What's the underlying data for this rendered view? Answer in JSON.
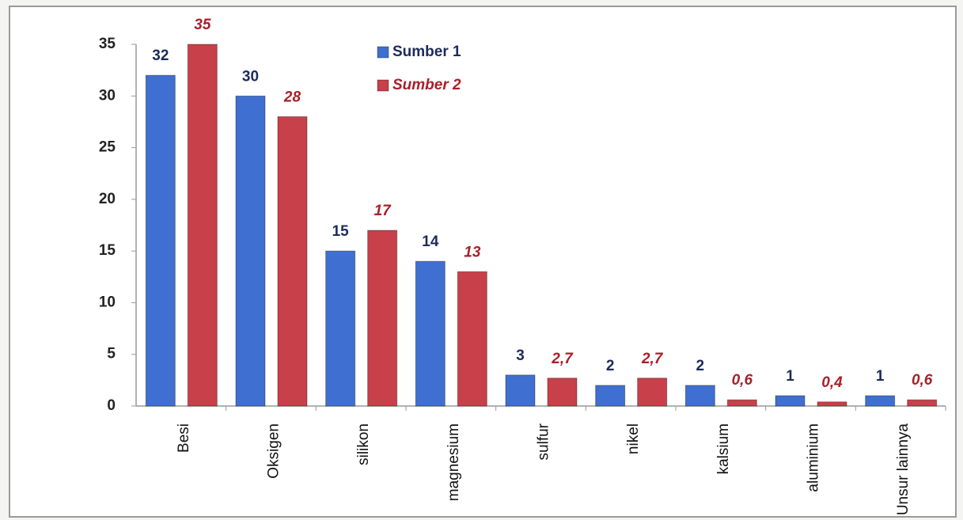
{
  "chart_data": {
    "type": "bar",
    "categories": [
      "Besi",
      "Oksigen",
      "silikon",
      "magnesium",
      "sulfur",
      "nikel",
      "kalsium",
      "aluminium",
      "Unsur lainnya"
    ],
    "series": [
      {
        "name": "Sumber 1",
        "color": "#3f6fd0",
        "values": [
          32,
          30,
          15,
          14,
          3,
          2,
          2,
          1,
          1
        ]
      },
      {
        "name": "Sumber 2",
        "color": "#c8404a",
        "values": [
          35,
          28,
          17,
          13,
          2.7,
          2.7,
          0.6,
          0.4,
          0.6
        ],
        "value_labels": [
          "35",
          "28",
          "17",
          "13",
          "2,7",
          "2,7",
          "0,6",
          "0,4",
          "0,6"
        ]
      }
    ],
    "ylim": [
      0,
      35
    ],
    "yticks": [
      0,
      5,
      10,
      15,
      20,
      25,
      30,
      35
    ],
    "grid": false,
    "legend": "top"
  }
}
